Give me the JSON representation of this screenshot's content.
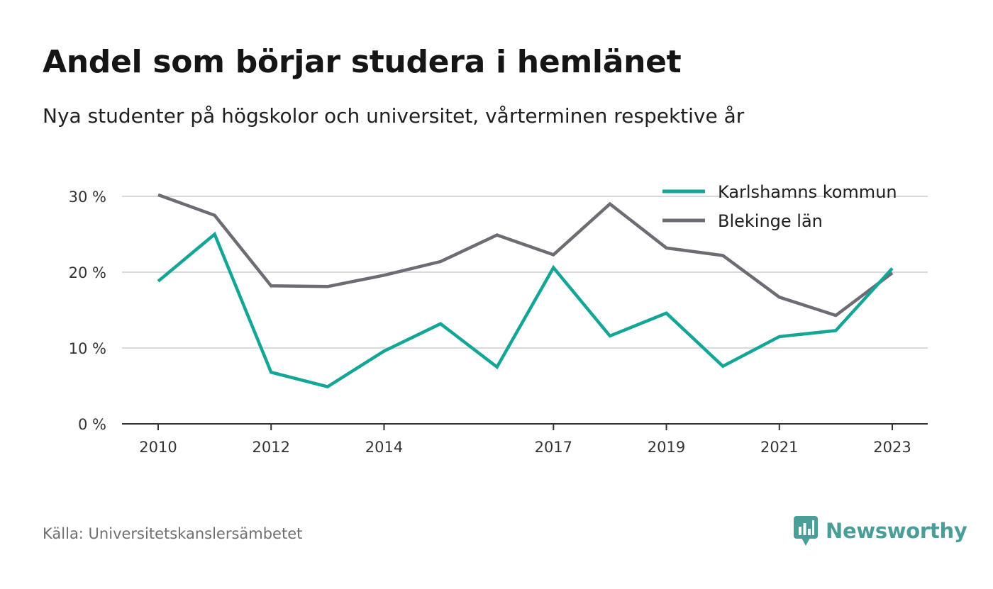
{
  "header": {
    "title": "Andel som börjar studera i hemlänet",
    "subtitle": "Nya studenter på högskolor och universitet, vårterminen respektive år"
  },
  "footer": {
    "source": "Källa: Universitetskanslersämbetet",
    "brand": "Newsworthy"
  },
  "icons": {
    "brand_logo": "newsworthy-logo-icon"
  },
  "colors": {
    "karlshamn": "#13a596",
    "blekinge": "#6d6c72",
    "grid": "#d9d9d9",
    "axis": "#333333",
    "brand": "#4a9e98"
  },
  "chart_data": {
    "type": "line",
    "title": "Andel som börjar studera i hemlänet",
    "subtitle": "Nya studenter på högskolor och universitet, vårterminen respektive år",
    "x": [
      2010,
      2011,
      2012,
      2013,
      2014,
      2015,
      2016,
      2017,
      2018,
      2019,
      2020,
      2021,
      2022,
      2023
    ],
    "x_tick_labels": [
      "2010",
      "2012",
      "2014",
      "2017",
      "2019",
      "2021",
      "2023"
    ],
    "y_ticks": [
      0,
      10,
      20,
      30
    ],
    "y_tick_labels": [
      "0 %",
      "10 %",
      "20 %",
      "30 %"
    ],
    "ylim": [
      0,
      30
    ],
    "grid": true,
    "legend_position": "top-right",
    "series": [
      {
        "name": "Karlshamns kommun",
        "color": "#13a596",
        "values": [
          18.8,
          25.0,
          6.8,
          4.9,
          9.6,
          13.2,
          7.5,
          20.6,
          11.6,
          14.6,
          7.6,
          11.5,
          12.3,
          20.5
        ]
      },
      {
        "name": "Blekinge län",
        "color": "#6d6c72",
        "values": [
          30.2,
          27.5,
          18.2,
          18.1,
          19.6,
          21.4,
          24.9,
          22.3,
          29.0,
          23.2,
          22.2,
          16.7,
          14.3,
          19.9
        ]
      }
    ]
  }
}
